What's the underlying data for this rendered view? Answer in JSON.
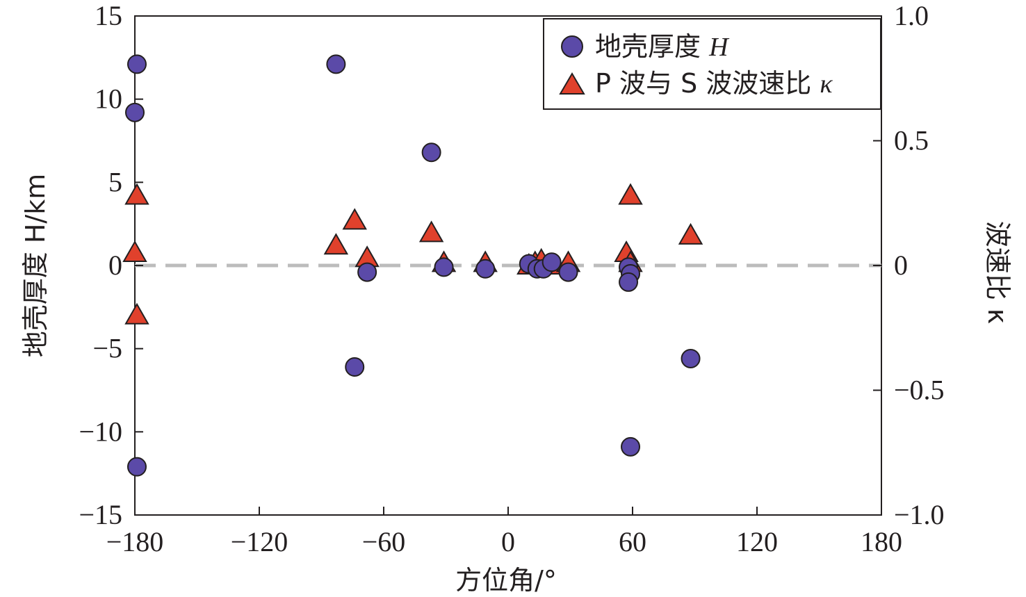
{
  "chart_data": {
    "type": "scatter",
    "x_axis": {
      "label": "方位角/°",
      "range": [
        -180,
        180
      ],
      "ticks": [
        -180,
        -120,
        -60,
        0,
        60,
        120,
        180
      ]
    },
    "y_axis_left": {
      "label": "地壳厚度 H/km",
      "range": [
        -15,
        15
      ],
      "ticks": [
        -15,
        -10,
        -5,
        0,
        5,
        10,
        15
      ]
    },
    "y_axis_right": {
      "label": "波速比 κ",
      "range": [
        -1.0,
        1.0
      ],
      "ticks": [
        -1.0,
        -0.5,
        0,
        0.5,
        1.0
      ],
      "tick_labels": [
        "−1.0",
        "−0.5",
        "0",
        "0.5",
        "1.0"
      ]
    },
    "zero_line": {
      "y": 0,
      "style": "dashed",
      "color": "#bcbcbc"
    },
    "legend_position": "top-right",
    "series": [
      {
        "name": "地壳厚度 H",
        "axis": "left",
        "marker": "circle",
        "color": "#5b4aa8",
        "points": [
          {
            "x": -179,
            "y": 12.1
          },
          {
            "x": -180,
            "y": 9.2
          },
          {
            "x": -179,
            "y": -12.1
          },
          {
            "x": -83,
            "y": 12.1
          },
          {
            "x": -74,
            "y": -6.1
          },
          {
            "x": -68,
            "y": -0.4
          },
          {
            "x": -37,
            "y": 6.8
          },
          {
            "x": -31,
            "y": -0.1
          },
          {
            "x": -11,
            "y": -0.2
          },
          {
            "x": 10,
            "y": 0.1
          },
          {
            "x": 14,
            "y": -0.2
          },
          {
            "x": 17,
            "y": -0.2
          },
          {
            "x": 21,
            "y": 0.2
          },
          {
            "x": 29,
            "y": -0.4
          },
          {
            "x": 58,
            "y": -0.1
          },
          {
            "x": 59,
            "y": -0.5
          },
          {
            "x": 58,
            "y": -1.0
          },
          {
            "x": 59,
            "y": -10.9
          },
          {
            "x": 88,
            "y": -5.6
          }
        ]
      },
      {
        "name": "P 波与 S 波波速比 κ",
        "axis": "right",
        "marker": "triangle",
        "color": "#e0412c",
        "points": [
          {
            "x": -179,
            "y": 0.28
          },
          {
            "x": -180,
            "y": 0.05
          },
          {
            "x": -179,
            "y": -0.2
          },
          {
            "x": -83,
            "y": 0.08
          },
          {
            "x": -74,
            "y": 0.18
          },
          {
            "x": -68,
            "y": 0.03
          },
          {
            "x": -37,
            "y": 0.13
          },
          {
            "x": -31,
            "y": 0.01
          },
          {
            "x": -11,
            "y": 0.01
          },
          {
            "x": 10,
            "y": 0.0
          },
          {
            "x": 13,
            "y": 0.01
          },
          {
            "x": 16,
            "y": 0.02
          },
          {
            "x": 21,
            "y": 0.0
          },
          {
            "x": 29,
            "y": 0.01
          },
          {
            "x": 57,
            "y": 0.05
          },
          {
            "x": 59,
            "y": 0.01
          },
          {
            "x": 59,
            "y": 0.28
          },
          {
            "x": 88,
            "y": 0.12
          }
        ]
      }
    ]
  },
  "legend": {
    "items": [
      {
        "label": "地壳厚度 ",
        "italic": "H"
      },
      {
        "label": "P 波与 S 波波速比 ",
        "italic": "κ"
      }
    ]
  },
  "colors": {
    "axis": "#231f20",
    "circle_fill": "#5b4aa8",
    "triangle_fill": "#e0412c",
    "marker_stroke": "#231f20",
    "zero_line": "#bcbcbc"
  }
}
